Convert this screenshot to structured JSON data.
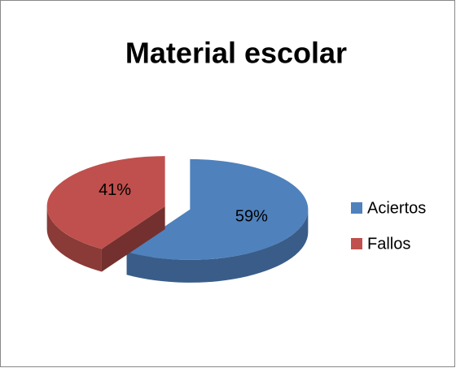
{
  "chart_data": {
    "type": "pie",
    "title": "Material escolar",
    "categories": [
      "Aciertos",
      "Fallos"
    ],
    "values": [
      59,
      41
    ],
    "value_labels": [
      "59%",
      "41%"
    ],
    "colors": [
      "#4f81bd",
      "#c0504d"
    ],
    "legend": "right"
  }
}
